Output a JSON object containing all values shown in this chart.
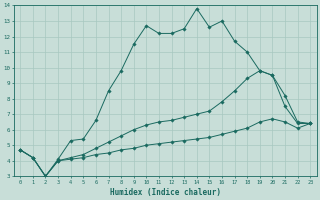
{
  "xlabel": "Humidex (Indice chaleur)",
  "xlim": [
    -0.5,
    23.5
  ],
  "ylim": [
    3,
    14
  ],
  "xticks": [
    0,
    1,
    2,
    3,
    4,
    5,
    6,
    7,
    8,
    9,
    10,
    11,
    12,
    13,
    14,
    15,
    16,
    17,
    18,
    19,
    20,
    21,
    22,
    23
  ],
  "yticks": [
    3,
    4,
    5,
    6,
    7,
    8,
    9,
    10,
    11,
    12,
    13,
    14
  ],
  "background_color": "#c8ded8",
  "grid_color": "#a8c8c0",
  "line_color": "#1a6a60",
  "series": [
    {
      "x": [
        0,
        1,
        2,
        3,
        4,
        5,
        6,
        7,
        8,
        9,
        10,
        11,
        12,
        13,
        14,
        15,
        16,
        17,
        18,
        19,
        20,
        21,
        22,
        23
      ],
      "y": [
        4.7,
        4.2,
        3.0,
        4.1,
        5.3,
        5.4,
        6.6,
        8.5,
        9.8,
        11.5,
        12.7,
        12.2,
        12.2,
        12.5,
        13.8,
        12.6,
        13.0,
        11.7,
        11.0,
        9.8,
        9.5,
        7.5,
        6.4,
        6.4
      ]
    },
    {
      "x": [
        0,
        1,
        2,
        3,
        4,
        5,
        6,
        7,
        8,
        9,
        10,
        11,
        12,
        13,
        14,
        15,
        16,
        17,
        18,
        19,
        20,
        21,
        22,
        23
      ],
      "y": [
        4.7,
        4.2,
        3.0,
        4.0,
        4.2,
        4.4,
        4.8,
        5.2,
        5.6,
        6.0,
        6.3,
        6.5,
        6.6,
        6.8,
        7.0,
        7.2,
        7.8,
        8.5,
        9.3,
        9.8,
        9.5,
        8.2,
        6.5,
        6.4
      ]
    },
    {
      "x": [
        0,
        1,
        2,
        3,
        4,
        5,
        6,
        7,
        8,
        9,
        10,
        11,
        12,
        13,
        14,
        15,
        16,
        17,
        18,
        19,
        20,
        21,
        22,
        23
      ],
      "y": [
        4.7,
        4.2,
        3.0,
        4.0,
        4.1,
        4.2,
        4.4,
        4.5,
        4.7,
        4.8,
        5.0,
        5.1,
        5.2,
        5.3,
        5.4,
        5.5,
        5.7,
        5.9,
        6.1,
        6.5,
        6.7,
        6.5,
        6.1,
        6.4
      ]
    }
  ]
}
